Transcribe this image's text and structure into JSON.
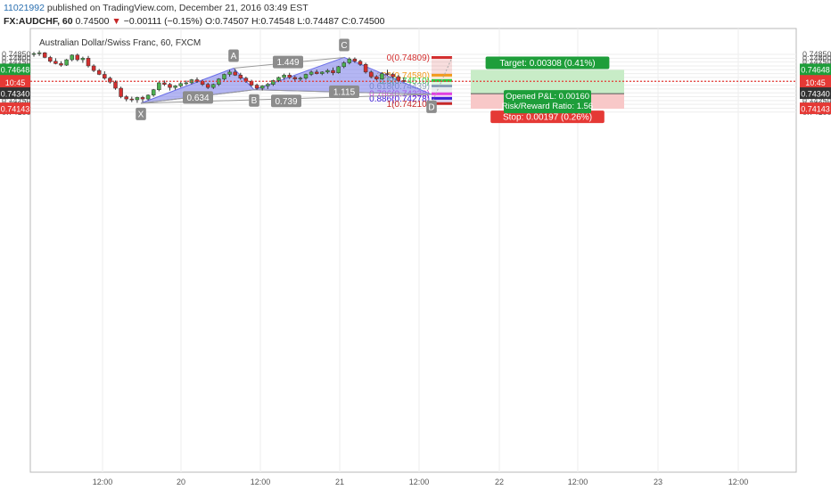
{
  "header": {
    "line1_user": "11021992",
    "line1_rest": " published on TradingView.com, December 21, 2016 03:49 EST",
    "symbol": "FX:AUDCHF, 60",
    "last": "0.74500",
    "change_arrow": "▼",
    "change": "−0.00111 (−0.15%)",
    "ohlc": "O:0.74507 H:0.74548 L:0.74487 C:0.74500"
  },
  "chart_title": "Australian Dollar/Swiss Franc, 60, FXCM",
  "colors": {
    "up": "#4caf50",
    "down": "#d32f2f",
    "pattern_fill": "#6a6ee8",
    "current_price": "#e53935",
    "target_fill": "#c8ecc7",
    "stop_fill": "#f8c8c8",
    "fib_0": "#d32f2f",
    "fib_0_382": "#f29b1e",
    "fib_0_5": "#2ecc40",
    "fib_0_618": "#8aa0b8",
    "fib_0_786": "#e040e0",
    "fib_0_886": "#3f20d8",
    "fib_1": "#c62828"
  },
  "chart_data": {
    "type": "candlestick",
    "ylim": [
      0.7406,
      0.749
    ],
    "price_ticks": [
      "0.74850",
      "0.74800",
      "0.74750",
      "0.74700",
      "0.74650",
      "0.74600",
      "0.74550",
      "0.74500",
      "0.74450",
      "0.74400",
      "0.74350",
      "0.74300",
      "0.74250",
      "0.74200",
      "0.74150",
      "0.74100"
    ],
    "time_ticks": [
      "12:00",
      "20",
      "12:00",
      "21",
      "12:00",
      "22",
      "12:00",
      "23",
      "12:00"
    ],
    "price_labels": [
      {
        "text": "0.74648",
        "value": 0.74648,
        "color": "#1e9e3a"
      },
      {
        "text": "0.74500",
        "value": 0.745,
        "color": "#e53935"
      },
      {
        "text": "10:45",
        "value": 0.7448,
        "color": "#e53935"
      },
      {
        "text": "0.74340",
        "value": 0.7434,
        "color": "#333333"
      },
      {
        "text": "0.74143",
        "value": 0.74143,
        "color": "#e53935"
      }
    ],
    "current_price": 0.745,
    "candles": [
      [
        0.7485,
        0.7488,
        0.7482,
        0.7486
      ],
      [
        0.7486,
        0.749,
        0.7483,
        0.7487
      ],
      [
        0.7487,
        0.7488,
        0.748,
        0.7481
      ],
      [
        0.7481,
        0.7483,
        0.7474,
        0.7476
      ],
      [
        0.7476,
        0.748,
        0.7472,
        0.7473
      ],
      [
        0.7473,
        0.7476,
        0.7469,
        0.7471
      ],
      [
        0.7471,
        0.7479,
        0.747,
        0.7478
      ],
      [
        0.7478,
        0.7485,
        0.7476,
        0.7484
      ],
      [
        0.7484,
        0.7486,
        0.7476,
        0.7478
      ],
      [
        0.7478,
        0.7482,
        0.7474,
        0.748
      ],
      [
        0.748,
        0.7483,
        0.7468,
        0.747
      ],
      [
        0.747,
        0.7472,
        0.7462,
        0.7464
      ],
      [
        0.7464,
        0.7466,
        0.7458,
        0.7459
      ],
      [
        0.7459,
        0.7463,
        0.7452,
        0.7454
      ],
      [
        0.7454,
        0.7456,
        0.7447,
        0.7449
      ],
      [
        0.7449,
        0.7451,
        0.7439,
        0.7441
      ],
      [
        0.7441,
        0.7443,
        0.7428,
        0.743
      ],
      [
        0.743,
        0.7432,
        0.7424,
        0.7427
      ],
      [
        0.7427,
        0.743,
        0.7423,
        0.7426
      ],
      [
        0.7426,
        0.743,
        0.7422,
        0.7429
      ],
      [
        0.7429,
        0.7431,
        0.7423,
        0.7427
      ],
      [
        0.7427,
        0.7433,
        0.7425,
        0.7432
      ],
      [
        0.7432,
        0.744,
        0.743,
        0.7439
      ],
      [
        0.7439,
        0.745,
        0.7437,
        0.7448
      ],
      [
        0.7448,
        0.7451,
        0.7444,
        0.7446
      ],
      [
        0.7446,
        0.7448,
        0.7438,
        0.7442
      ],
      [
        0.7442,
        0.7445,
        0.7439,
        0.7444
      ],
      [
        0.7444,
        0.7449,
        0.7442,
        0.7447
      ],
      [
        0.7447,
        0.7451,
        0.7445,
        0.7448
      ],
      [
        0.7448,
        0.7453,
        0.7446,
        0.7452
      ],
      [
        0.7452,
        0.7455,
        0.7448,
        0.745
      ],
      [
        0.745,
        0.7452,
        0.7444,
        0.7446
      ],
      [
        0.7446,
        0.7448,
        0.744,
        0.7442
      ],
      [
        0.7442,
        0.7447,
        0.744,
        0.7446
      ],
      [
        0.7446,
        0.7454,
        0.7444,
        0.7453
      ],
      [
        0.7453,
        0.746,
        0.7451,
        0.7459
      ],
      [
        0.7459,
        0.7465,
        0.7456,
        0.7462
      ],
      [
        0.7462,
        0.7466,
        0.7457,
        0.7458
      ],
      [
        0.7458,
        0.7461,
        0.7452,
        0.7454
      ],
      [
        0.7454,
        0.7456,
        0.7448,
        0.745
      ],
      [
        0.745,
        0.7452,
        0.7443,
        0.7445
      ],
      [
        0.7445,
        0.7447,
        0.7439,
        0.7441
      ],
      [
        0.7441,
        0.7445,
        0.7438,
        0.7444
      ],
      [
        0.7444,
        0.7448,
        0.744,
        0.7446
      ],
      [
        0.7446,
        0.7452,
        0.7444,
        0.7451
      ],
      [
        0.7451,
        0.7456,
        0.7449,
        0.7455
      ],
      [
        0.7455,
        0.746,
        0.7452,
        0.7458
      ],
      [
        0.7458,
        0.7461,
        0.7453,
        0.7455
      ],
      [
        0.7455,
        0.7457,
        0.745,
        0.7453
      ],
      [
        0.7453,
        0.7456,
        0.745,
        0.7454
      ],
      [
        0.7454,
        0.746,
        0.7452,
        0.7459
      ],
      [
        0.7459,
        0.7464,
        0.7457,
        0.7462
      ],
      [
        0.7462,
        0.7465,
        0.7459,
        0.746
      ],
      [
        0.746,
        0.7463,
        0.7458,
        0.7462
      ],
      [
        0.7462,
        0.7466,
        0.746,
        0.7464
      ],
      [
        0.7464,
        0.7468,
        0.7458,
        0.7461
      ],
      [
        0.7461,
        0.747,
        0.746,
        0.7469
      ],
      [
        0.7469,
        0.7476,
        0.7467,
        0.7474
      ],
      [
        0.7474,
        0.7481,
        0.7472,
        0.7479
      ],
      [
        0.7479,
        0.7481,
        0.7474,
        0.7476
      ],
      [
        0.7476,
        0.7478,
        0.747,
        0.7472
      ],
      [
        0.7472,
        0.7474,
        0.746,
        0.7462
      ],
      [
        0.7462,
        0.7464,
        0.7454,
        0.7456
      ],
      [
        0.7456,
        0.7458,
        0.7451,
        0.7453
      ],
      [
        0.7453,
        0.7462,
        0.7452,
        0.746
      ],
      [
        0.746,
        0.7465,
        0.7457,
        0.7459
      ],
      [
        0.7459,
        0.7461,
        0.7454,
        0.7456
      ],
      [
        0.7456,
        0.7458,
        0.745,
        0.7451
      ],
      [
        0.7451,
        0.7455,
        0.7449,
        0.745
      ]
    ],
    "harmonic_points": [
      {
        "label": "X",
        "value": 0.74215
      },
      {
        "label": "A",
        "value": 0.7467
      },
      {
        "label": "B",
        "value": 0.7439
      },
      {
        "label": "C",
        "value": 0.7481
      },
      {
        "label": "D",
        "value": 0.7433
      }
    ],
    "ratio_labels": [
      "1.449",
      "0.634",
      "1.115",
      "0.739"
    ],
    "fib_levels": [
      {
        "text": "0(0.74809)",
        "value": 0.74809,
        "color_key": "fib_0"
      },
      {
        "text": "0.382(0.74580)",
        "value": 0.7458,
        "color_key": "fib_0_382"
      },
      {
        "text": "0.5(0.74510)",
        "value": 0.7451,
        "color_key": "fib_0_5"
      },
      {
        "text": "0.618(0.74439)",
        "value": 0.74439,
        "color_key": "fib_0_618"
      },
      {
        "text": "0.786(0.74338)",
        "value": 0.74338,
        "color_key": "fib_0_786"
      },
      {
        "text": "0.886(0.74278)",
        "value": 0.74278,
        "color_key": "fib_0_886"
      },
      {
        "text": "1(0.74210)",
        "value": 0.7421,
        "color_key": "fib_1"
      }
    ],
    "position": {
      "entry": 0.7434,
      "target": 0.74648,
      "stop": 0.74143,
      "target_label": "Target: 0.00308 (0.41%)",
      "stop_label": "Stop: 0.00197 (0.26%)",
      "pnl_label": "Opened P&L: 0.00160",
      "rr_label": "Risk/Reward Ratio: 1.56"
    }
  }
}
